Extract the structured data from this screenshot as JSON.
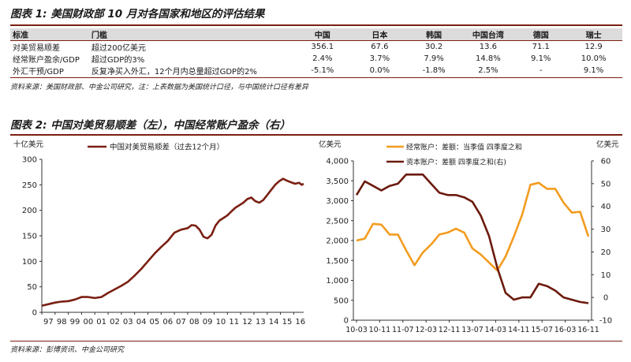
{
  "fig1": {
    "title": "图表 1: 美国财政部 10 月对各国家和地区的评估结果",
    "headers": [
      "标准",
      "门槛",
      "中国",
      "日本",
      "韩国",
      "中国台湾",
      "德国",
      "瑞士"
    ],
    "rows": [
      [
        "对美贸易顺差",
        "超过200亿美元",
        "356.1",
        "67.6",
        "30.2",
        "13.6",
        "71.1",
        "12.9"
      ],
      [
        "经常账户盈余/GDP",
        "超过GDP的3%",
        "2.4%",
        "3.7%",
        "7.9%",
        "14.8%",
        "9.1%",
        "10.0%"
      ],
      [
        "外汇干预/GDP",
        "反复净买入外汇，12个月内总量超过GDP的2%",
        "-5.1%",
        "0.0%",
        "-1.8%",
        "2.5%",
        "-",
        "9.1%"
      ]
    ],
    "source": "资料来源：美国财政部、中金公司研究，注：上表数据为美国统计口径，与中国统计口径有差异"
  },
  "fig2": {
    "title": "图表 2: 中国对美贸易顺差（左），中国经常账户盈余（右）",
    "source": "资料来源：彭博资讯、中金公司研究"
  },
  "chart_data": [
    {
      "type": "line",
      "title": "",
      "ylabel": "十亿美元",
      "xlabel": "",
      "ylim": [
        0,
        300
      ],
      "yticks": [
        "0",
        "50",
        "100",
        "150",
        "200",
        "250",
        "300"
      ],
      "xticks": [
        "97",
        "98",
        "99",
        "00",
        "01",
        "02",
        "03",
        "04",
        "05",
        "06",
        "07",
        "08",
        "09",
        "10",
        "11",
        "12",
        "13",
        "14",
        "15",
        "16"
      ],
      "xrange": [
        1997,
        2016.75
      ],
      "color": "#7a1f12",
      "series": [
        {
          "name": "中国对美贸易顺差（过去12个月）",
          "x": [
            1997,
            1997.5,
            1998,
            1998.5,
            1999,
            1999.5,
            2000,
            2000.5,
            2001,
            2001.5,
            2002,
            2002.5,
            2003,
            2003.5,
            2004,
            2004.5,
            2005,
            2005.5,
            2006,
            2006.5,
            2007,
            2007.5,
            2008,
            2008.3,
            2008.6,
            2008.9,
            2009.2,
            2009.5,
            2009.8,
            2010.1,
            2010.4,
            2010.7,
            2011,
            2011.3,
            2011.6,
            2011.9,
            2012.2,
            2012.5,
            2012.8,
            2013.1,
            2013.4,
            2013.7,
            2014,
            2014.3,
            2014.6,
            2014.9,
            2015.2,
            2015.5,
            2015.8,
            2016.1,
            2016.4,
            2016.6,
            2016.75
          ],
          "values": [
            13,
            16,
            19,
            21,
            22,
            25,
            30,
            30,
            28,
            30,
            38,
            45,
            52,
            60,
            72,
            85,
            100,
            115,
            128,
            140,
            156,
            162,
            165,
            171,
            170,
            162,
            148,
            145,
            152,
            170,
            180,
            185,
            190,
            198,
            205,
            210,
            215,
            222,
            225,
            218,
            215,
            220,
            230,
            240,
            250,
            257,
            262,
            258,
            255,
            252,
            254,
            250,
            252
          ]
        }
      ]
    },
    {
      "type": "line",
      "title": "",
      "ylabel": "亿美元",
      "y2label": "亿美元",
      "ylim": [
        0,
        4000
      ],
      "y2lim": [
        -10,
        60
      ],
      "yticks": [
        "0",
        "500",
        "1,000",
        "1,500",
        "2,000",
        "2,500",
        "3,000",
        "3,500",
        "4,000"
      ],
      "y2ticks": [
        "-10",
        "0",
        "10",
        "20",
        "30",
        "40",
        "50",
        "60"
      ],
      "xticks": [
        "10-03",
        "10-11",
        "11-07",
        "12-03",
        "12-11",
        "13-07",
        "14-03",
        "14-11",
        "15-07",
        "16-03",
        "16-11"
      ],
      "series": [
        {
          "name": "经常账户：差额：当季值  四季度之和",
          "axis": "left",
          "color": "#f39c1f",
          "x": [
            0,
            1,
            2,
            3,
            4,
            5,
            6,
            7,
            8,
            9,
            10,
            11,
            12,
            13,
            14,
            15,
            16,
            17,
            18,
            19,
            20,
            21,
            22,
            23,
            24,
            25,
            26,
            27,
            28
          ],
          "values": [
            2000,
            2050,
            2420,
            2400,
            2150,
            2150,
            1750,
            1380,
            1700,
            1900,
            2150,
            2200,
            2300,
            2200,
            1800,
            1650,
            1450,
            1250,
            1600,
            2100,
            2650,
            3400,
            3450,
            3300,
            3300,
            2950,
            2700,
            2720,
            2100
          ]
        },
        {
          "name": "资本账户：差额  四季度之和(右)",
          "axis": "right",
          "color": "#6b1a0d",
          "x": [
            0,
            1,
            2,
            3,
            4,
            5,
            6,
            7,
            8,
            9,
            10,
            11,
            12,
            13,
            14,
            15,
            16,
            17,
            18,
            19,
            20,
            21,
            22,
            23,
            24,
            25,
            26,
            27,
            28
          ],
          "values": [
            45,
            51,
            49,
            47,
            49,
            50,
            54,
            54,
            54,
            50,
            46,
            45,
            45,
            44,
            42,
            36,
            27,
            13,
            2,
            -1,
            0,
            0,
            6,
            5,
            3,
            0,
            -1,
            -2,
            -2.5
          ]
        }
      ]
    }
  ]
}
